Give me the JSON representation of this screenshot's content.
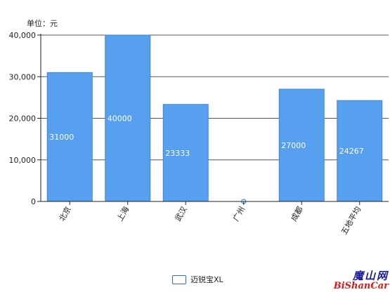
{
  "chart_data": {
    "type": "bar",
    "unit_label": "单位：元",
    "categories": [
      "北京",
      "上海",
      "武汉",
      "广州",
      "成都",
      "五地平均"
    ],
    "series": [
      {
        "name": "迈锐宝XL",
        "values": [
          31000,
          40000,
          23333,
          0,
          27000,
          24267
        ]
      }
    ],
    "data_labels": [
      "31000",
      "40000",
      "23333",
      "",
      "27000",
      "24267"
    ],
    "yticks": [
      "0",
      "10,000",
      "20,000",
      "30,000",
      "40,000"
    ],
    "ylim": [
      0,
      40000
    ],
    "grid": true,
    "legend_position": "bottom-center",
    "colors": {
      "bar": "#56a0ef",
      "bar_edge": "#3f86d6",
      "grid": "#555555",
      "label": "#ffffff"
    }
  },
  "watermark": {
    "line1": "魔山网",
    "line2": "BiShanCar"
  }
}
